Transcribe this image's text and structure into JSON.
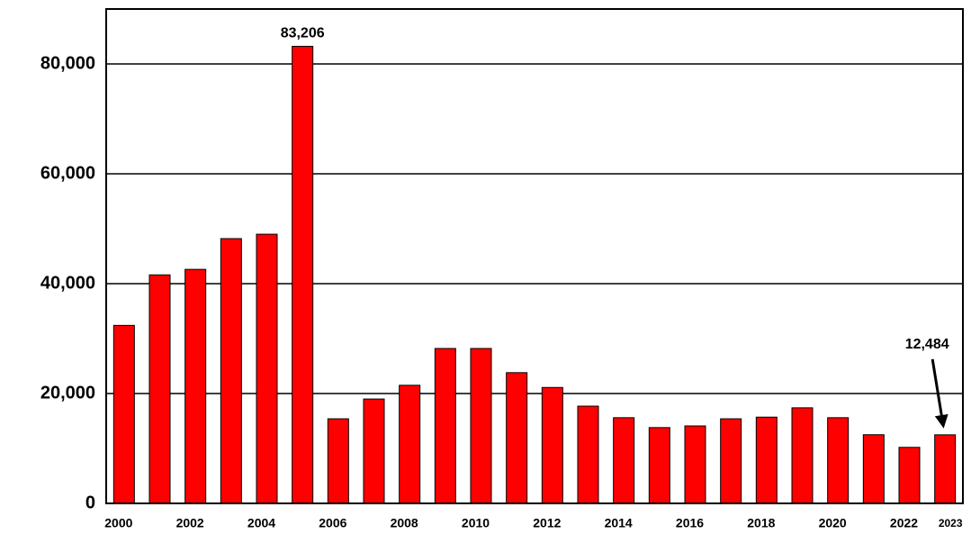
{
  "chart_data": {
    "type": "bar",
    "categories": [
      "2000",
      null,
      "2002",
      null,
      "2004",
      null,
      "2006",
      null,
      "2008",
      null,
      "2010",
      null,
      "2012",
      null,
      "2014",
      null,
      "2016",
      null,
      "2018",
      null,
      "2020",
      null,
      "2022",
      "2023"
    ],
    "values": [
      32400,
      41600,
      42600,
      48200,
      49000,
      83206,
      15400,
      19000,
      21500,
      28200,
      28200,
      23800,
      21100,
      17700,
      15600,
      13800,
      14100,
      15400,
      15700,
      17400,
      15600,
      12500,
      10200,
      12484
    ],
    "value_labels": [
      null,
      null,
      null,
      null,
      null,
      "83,206",
      null,
      null,
      null,
      null,
      null,
      null,
      null,
      null,
      null,
      null,
      null,
      null,
      null,
      null,
      null,
      null,
      null,
      "12,484"
    ],
    "color": "#ff0000",
    "ylim": [
      0,
      90000
    ],
    "yticks": [
      0,
      {
        "value": 20000,
        "label": "20,000"
      },
      {
        "value": 40000,
        "label": "40,000"
      },
      {
        "value": 60000,
        "label": "60,000"
      },
      {
        "value": 80000,
        "label": "80,000"
      }
    ],
    "grid": true
  }
}
